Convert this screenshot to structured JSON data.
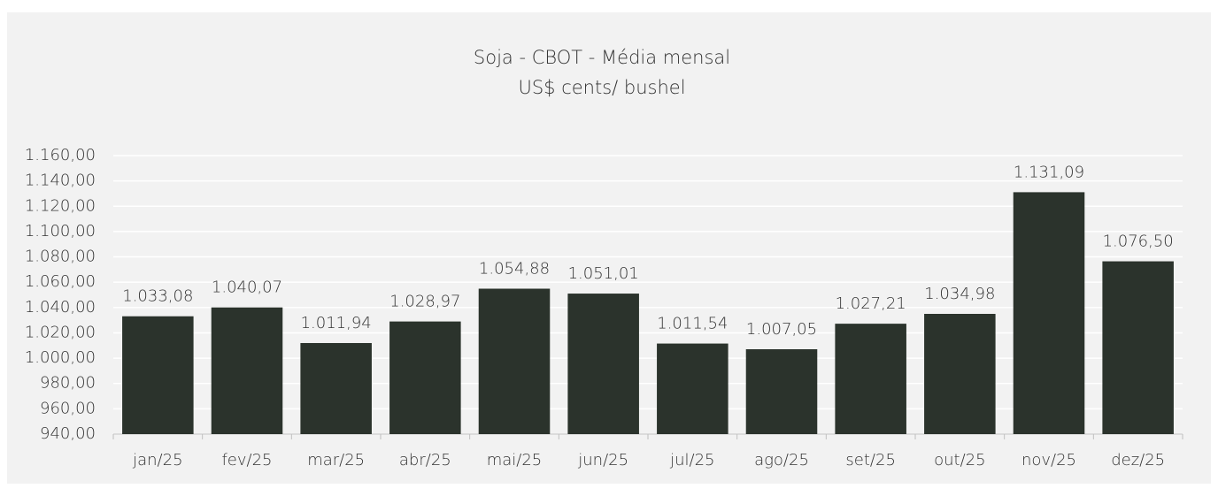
{
  "chart_data": {
    "type": "bar",
    "title": "Soja - CBOT - Média mensal",
    "subtitle": "US$ cents/ bushel",
    "categories": [
      "jan/25",
      "fev/25",
      "mar/25",
      "abr/25",
      "mai/25",
      "jun/25",
      "jul/25",
      "ago/25",
      "set/25",
      "out/25",
      "nov/25",
      "dez/25"
    ],
    "values": [
      1033.08,
      1040.07,
      1011.94,
      1028.97,
      1054.88,
      1051.01,
      1011.54,
      1007.05,
      1027.21,
      1034.98,
      1131.09,
      1076.5
    ],
    "value_labels": [
      "1.033,08",
      "1.040,07",
      "1.011,94",
      "1.028,97",
      "1.054,88",
      "1.051,01",
      "1.011,54",
      "1.007,05",
      "1.027,21",
      "1.034,98",
      "1.131,09",
      "1.076,50"
    ],
    "color": "#2b332c",
    "ylim": [
      940,
      1160
    ],
    "yticks": [
      {
        "value": 940,
        "label": "940,00"
      },
      {
        "value": 960,
        "label": "960,00"
      },
      {
        "value": 980,
        "label": "980,00"
      },
      {
        "value": 1000,
        "label": "1.000,00"
      },
      {
        "value": 1020,
        "label": "1.020,00"
      },
      {
        "value": 1040,
        "label": "1.040,00"
      },
      {
        "value": 1060,
        "label": "1.060,00"
      },
      {
        "value": 1080,
        "label": "1.080,00"
      },
      {
        "value": 1100,
        "label": "1.100,00"
      },
      {
        "value": 1120,
        "label": "1.120,00"
      },
      {
        "value": 1140,
        "label": "1.140,00"
      },
      {
        "value": 1160,
        "label": "1.160,00"
      }
    ],
    "grid": true
  }
}
